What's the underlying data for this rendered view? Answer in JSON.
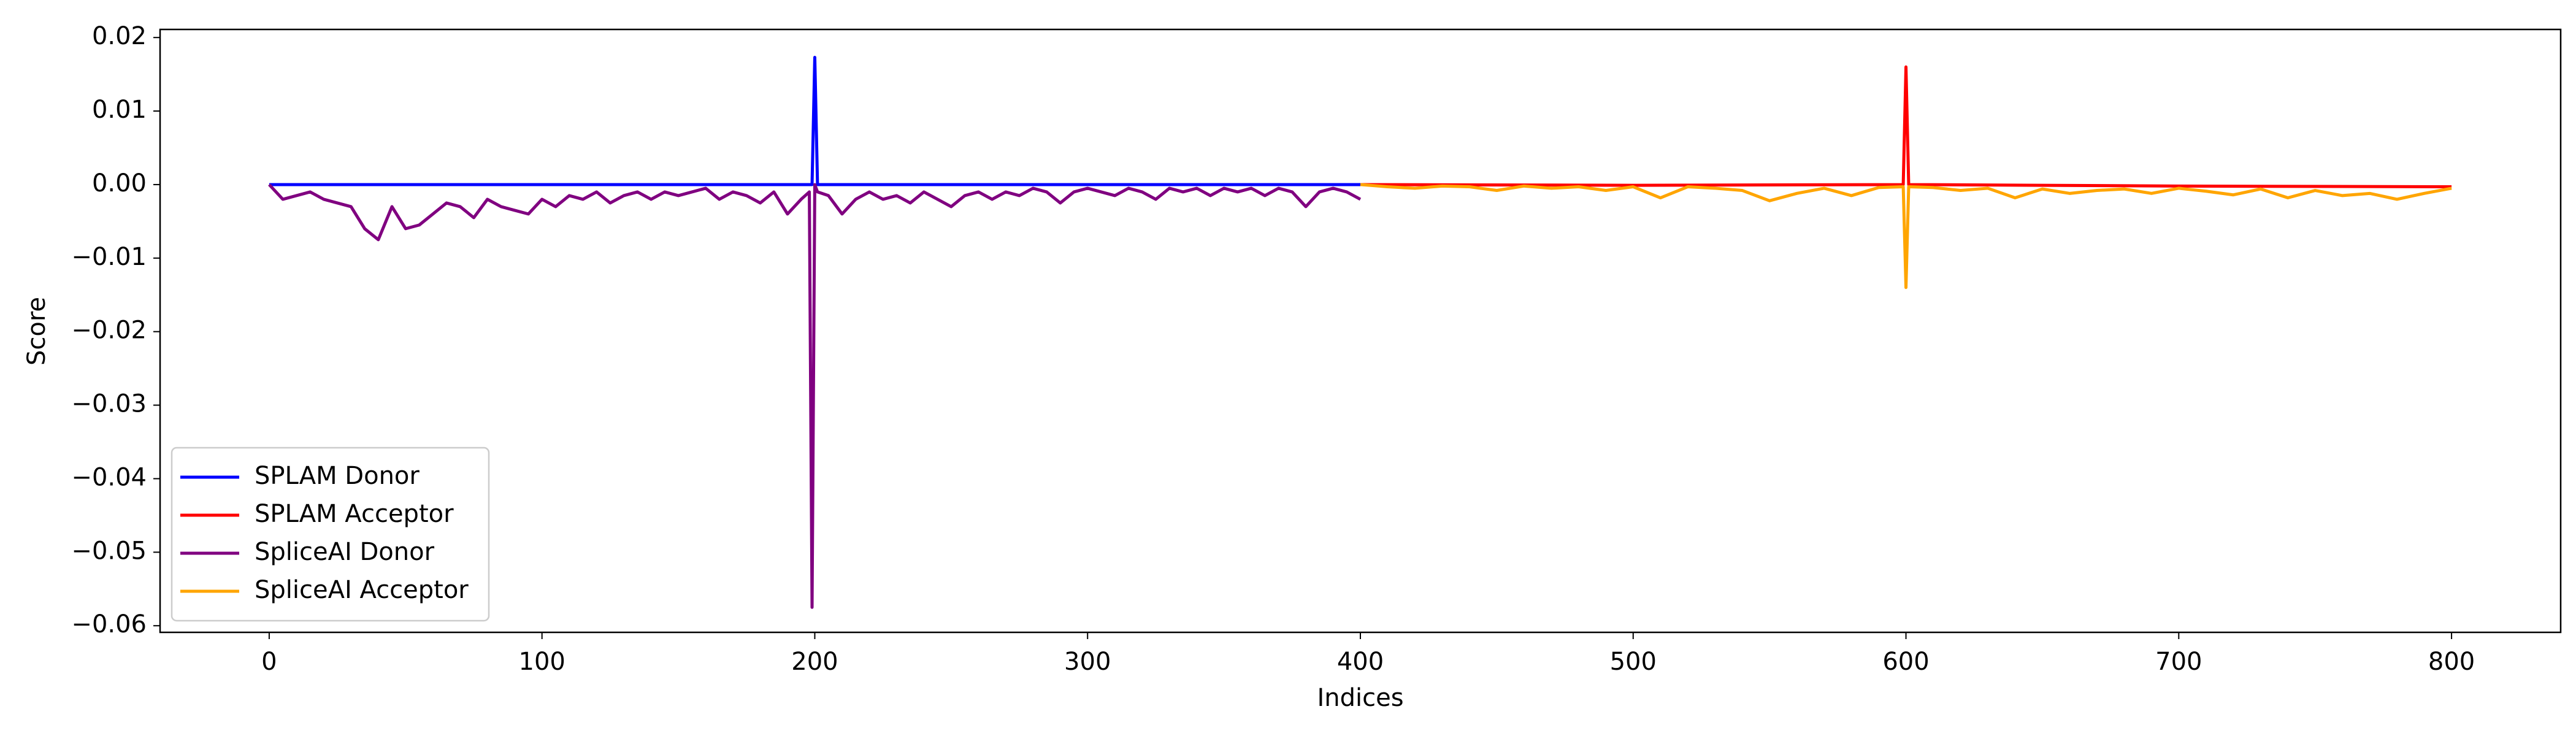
{
  "chart_data": {
    "type": "line",
    "xlabel": "Indices",
    "ylabel": "Score",
    "xlim": [
      -40,
      840
    ],
    "ylim": [
      -0.0609,
      0.0211
    ],
    "xticks": [
      0,
      100,
      200,
      300,
      400,
      500,
      600,
      700,
      800
    ],
    "yticks": [
      {
        "value": -0.06,
        "label": "−0.06"
      },
      {
        "value": -0.05,
        "label": "−0.05"
      },
      {
        "value": -0.04,
        "label": "−0.04"
      },
      {
        "value": -0.03,
        "label": "−0.03"
      },
      {
        "value": -0.02,
        "label": "−0.02"
      },
      {
        "value": -0.01,
        "label": "−0.01"
      },
      {
        "value": 0,
        "label": "0.00"
      },
      {
        "value": 0.01,
        "label": "0.01"
      },
      {
        "value": 0.02,
        "label": "0.02"
      }
    ],
    "grid": false,
    "legend": "lower left",
    "series": [
      {
        "name": "SPLAM Donor",
        "color": "#0000ff",
        "x": [
          0,
          199,
          200,
          201,
          400
        ],
        "values": [
          0,
          0,
          0.0173,
          0,
          0
        ]
      },
      {
        "name": "SPLAM Acceptor",
        "color": "#ff0000",
        "x": [
          400,
          500,
          599,
          600,
          601,
          700,
          800
        ],
        "values": [
          0,
          -0.0001,
          0,
          0.016,
          0,
          -0.0002,
          -0.0003
        ]
      },
      {
        "name": "SpliceAI Donor",
        "color": "#800080",
        "x": [
          0,
          5,
          10,
          15,
          20,
          25,
          30,
          35,
          40,
          45,
          50,
          55,
          60,
          65,
          70,
          75,
          80,
          85,
          90,
          95,
          100,
          105,
          110,
          115,
          120,
          125,
          130,
          135,
          140,
          145,
          150,
          155,
          160,
          165,
          170,
          175,
          180,
          185,
          190,
          195,
          198,
          199,
          200,
          201,
          205,
          210,
          215,
          220,
          225,
          230,
          235,
          240,
          245,
          250,
          255,
          260,
          265,
          270,
          275,
          280,
          285,
          290,
          295,
          300,
          305,
          310,
          315,
          320,
          325,
          330,
          335,
          340,
          345,
          350,
          355,
          360,
          365,
          370,
          375,
          380,
          385,
          390,
          395,
          400
        ],
        "values": [
          0,
          -0.002,
          -0.0015,
          -0.001,
          -0.002,
          -0.0025,
          -0.003,
          -0.006,
          -0.0075,
          -0.003,
          -0.006,
          -0.0055,
          -0.004,
          -0.0025,
          -0.003,
          -0.0045,
          -0.002,
          -0.003,
          -0.0035,
          -0.004,
          -0.002,
          -0.003,
          -0.0015,
          -0.002,
          -0.001,
          -0.0025,
          -0.0015,
          -0.001,
          -0.002,
          -0.001,
          -0.0015,
          -0.001,
          -0.0005,
          -0.002,
          -0.001,
          -0.0015,
          -0.0025,
          -0.001,
          -0.004,
          -0.002,
          -0.001,
          -0.0575,
          0,
          -0.001,
          -0.0015,
          -0.004,
          -0.002,
          -0.001,
          -0.002,
          -0.0015,
          -0.0025,
          -0.001,
          -0.002,
          -0.003,
          -0.0015,
          -0.001,
          -0.002,
          -0.001,
          -0.0015,
          -0.0005,
          -0.001,
          -0.0025,
          -0.001,
          -0.0005,
          -0.001,
          -0.0015,
          -0.0005,
          -0.001,
          -0.002,
          -0.0005,
          -0.001,
          -0.0005,
          -0.0015,
          -0.0005,
          -0.001,
          -0.0005,
          -0.0015,
          -0.0005,
          -0.001,
          -0.003,
          -0.001,
          -0.0005,
          -0.001,
          -0.002
        ]
      },
      {
        "name": "SpliceAI Acceptor",
        "color": "#ffa500",
        "x": [
          400,
          410,
          420,
          430,
          440,
          450,
          460,
          470,
          480,
          490,
          500,
          510,
          520,
          530,
          540,
          550,
          560,
          570,
          580,
          590,
          599,
          600,
          601,
          610,
          620,
          630,
          640,
          650,
          660,
          670,
          680,
          690,
          700,
          710,
          720,
          730,
          740,
          750,
          760,
          770,
          780,
          790,
          800
        ],
        "values": [
          0,
          -0.0003,
          -0.0005,
          -0.0002,
          -0.0003,
          -0.0008,
          -0.0002,
          -0.0005,
          -0.0003,
          -0.0008,
          -0.0003,
          -0.0018,
          -0.0003,
          -0.0005,
          -0.0008,
          -0.0022,
          -0.0012,
          -0.0005,
          -0.0015,
          -0.0004,
          -0.0003,
          -0.014,
          -0.0003,
          -0.0004,
          -0.0008,
          -0.0005,
          -0.0018,
          -0.0006,
          -0.0012,
          -0.0008,
          -0.0006,
          -0.0012,
          -0.0005,
          -0.0009,
          -0.0014,
          -0.0006,
          -0.0018,
          -0.0008,
          -0.0015,
          -0.0012,
          -0.002,
          -0.0012,
          -0.0005
        ]
      }
    ]
  }
}
